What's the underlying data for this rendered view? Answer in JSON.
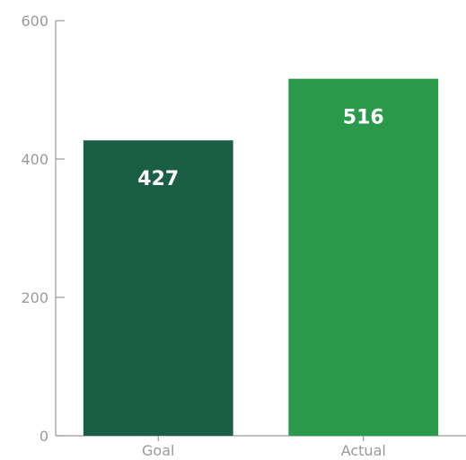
{
  "chart_data": {
    "type": "bar",
    "categories": [
      "Goal",
      "Actual"
    ],
    "values": [
      427,
      516
    ],
    "data_labels": [
      "427",
      "516"
    ],
    "colors": [
      "#1a5e45",
      "#2a9a4a"
    ],
    "title": "",
    "xlabel": "",
    "ylabel": "",
    "ylim": [
      0,
      600
    ],
    "yticks": [
      0,
      200,
      400,
      600
    ],
    "ytick_labels": [
      "0",
      "200",
      "400",
      "600"
    ],
    "grid": false,
    "axis_color": "#9a9a9a",
    "label_color": "#ffffff"
  }
}
